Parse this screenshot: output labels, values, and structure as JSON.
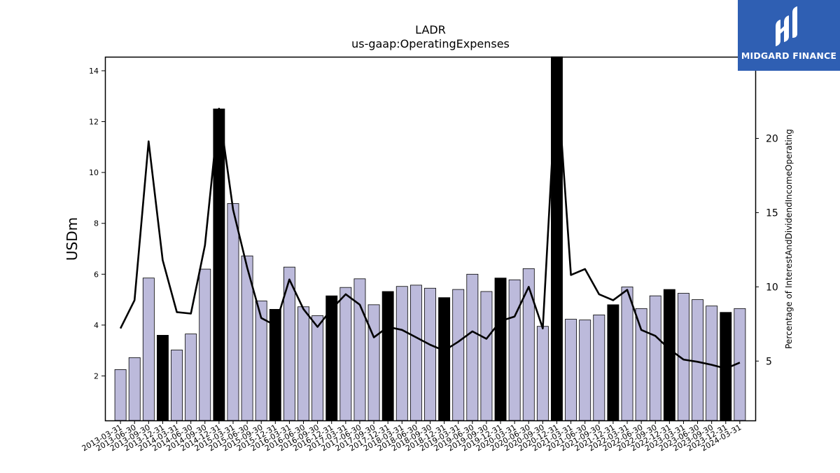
{
  "chart_data": {
    "type": "bar",
    "title": "LADR",
    "subtitle": "us-gaap:OperatingExpenses",
    "ylabel": "USDm",
    "y2label": "Percentage of InterestAndDividendIncomeOperating",
    "ylim": [
      0.25,
      14.55
    ],
    "y2lim": [
      1.0,
      25.5
    ],
    "yticks": [
      2,
      4,
      6,
      8,
      10,
      12,
      14
    ],
    "y2ticks": [
      5,
      10,
      15,
      20
    ],
    "categories": [
      "2013-03-31",
      "2013-06-30",
      "2013-09-30",
      "2013-12-31",
      "2014-03-31",
      "2014-06-30",
      "2014-09-30",
      "2014-12-31",
      "2015-03-31",
      "2015-06-30",
      "2015-09-30",
      "2015-12-31",
      "2016-03-31",
      "2016-06-30",
      "2016-09-30",
      "2016-12-31",
      "2017-03-31",
      "2017-06-30",
      "2017-09-30",
      "2017-12-31",
      "2018-03-31",
      "2018-06-30",
      "2018-09-30",
      "2018-12-31",
      "2019-03-31",
      "2019-06-30",
      "2019-09-30",
      "2019-12-31",
      "2020-03-31",
      "2020-06-30",
      "2020-09-30",
      "2020-12-31",
      "2021-03-31",
      "2021-06-30",
      "2021-09-30",
      "2021-12-31",
      "2022-03-31",
      "2022-06-30",
      "2022-09-30",
      "2022-12-31",
      "2023-03-31",
      "2023-06-30",
      "2023-09-30",
      "2023-12-31",
      "2024-03-31"
    ],
    "series": [
      {
        "kind": "bar",
        "axis": "left",
        "values": [
          2.25,
          2.72,
          5.85,
          3.6,
          3.02,
          3.65,
          6.2,
          12.5,
          8.78,
          6.72,
          4.95,
          4.62,
          6.28,
          4.72,
          4.37,
          5.15,
          5.48,
          5.82,
          4.8,
          5.32,
          5.52,
          5.57,
          5.45,
          5.08,
          5.4,
          6.0,
          5.32,
          5.85,
          5.78,
          6.22,
          3.95,
          14.6,
          4.23,
          4.2,
          4.4,
          4.8,
          5.5,
          4.65,
          5.15,
          5.4,
          5.25,
          5.0,
          4.75,
          4.5,
          4.65
        ],
        "highlight": [
          false,
          false,
          false,
          true,
          false,
          false,
          false,
          true,
          false,
          false,
          false,
          true,
          false,
          false,
          false,
          true,
          false,
          false,
          false,
          true,
          false,
          false,
          false,
          true,
          false,
          false,
          false,
          true,
          false,
          false,
          false,
          true,
          false,
          false,
          false,
          true,
          false,
          false,
          false,
          true,
          false,
          false,
          false,
          true,
          false
        ],
        "color": "#bcbadb",
        "highlight_color": "#000000"
      },
      {
        "kind": "line",
        "axis": "right",
        "values": [
          7.2,
          9.1,
          19.8,
          11.8,
          8.3,
          8.2,
          12.8,
          22.0,
          15.2,
          11.3,
          7.9,
          7.4,
          10.5,
          8.5,
          7.3,
          8.5,
          9.5,
          8.8,
          6.6,
          7.3,
          7.1,
          6.6,
          6.1,
          5.7,
          6.3,
          7.0,
          6.5,
          7.7,
          8.0,
          10.0,
          7.2,
          24.5,
          10.8,
          11.2,
          9.5,
          9.1,
          9.8,
          7.1,
          6.7,
          5.8,
          5.1,
          4.95,
          4.75,
          4.5,
          4.9
        ],
        "color": "#000000"
      }
    ]
  },
  "logo": {
    "text": "MIDGARD FINANCE",
    "bg_color": "#2f5fb3"
  }
}
